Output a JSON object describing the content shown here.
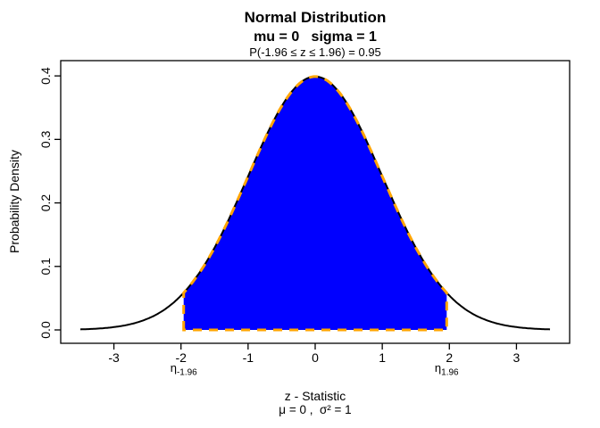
{
  "chart_data": {
    "type": "area",
    "title": "Normal Distribution",
    "subtitle": "mu = 0   sigma = 1",
    "probability_label": "P(-1.96 ≤ z ≤  1.96) = 0.95",
    "xlabel": "z - Statistic",
    "xlabel_params": "μ = 0 ,  σ² = 1",
    "ylabel": "Probability Density",
    "distribution": {
      "mu": 0,
      "sigma": 1
    },
    "curve_color": "#000000",
    "shade": {
      "from": -1.96,
      "to": 1.96,
      "probability": 0.95,
      "fill_color": "#0000FF",
      "outline_color": "#FFA500"
    },
    "xlim": [
      -3.5,
      3.5
    ],
    "ylim": [
      0,
      0.41
    ],
    "x_ticks": [
      -3,
      -2,
      -1,
      0,
      1,
      2,
      3
    ],
    "y_ticks": [
      "0.0",
      "0.1",
      "0.2",
      "0.3",
      "0.4"
    ],
    "eta_labels": [
      {
        "base": "η",
        "sub": "-1.96",
        "x": -1.96
      },
      {
        "base": "η",
        "sub": "1.96",
        "x": 1.96
      }
    ]
  }
}
